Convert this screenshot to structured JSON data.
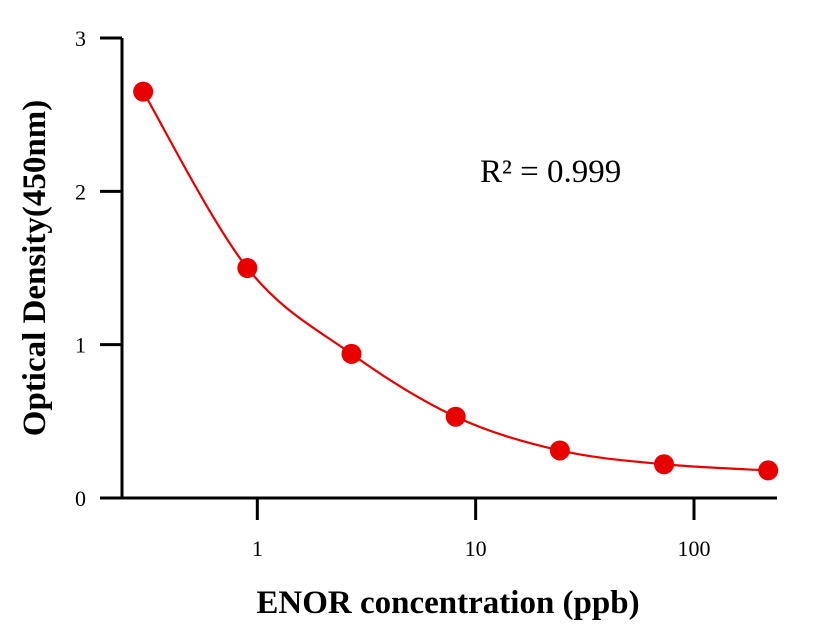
{
  "chart_data": {
    "type": "scatter",
    "xlabel": "ENOR concentration (ppb)",
    "ylabel": "Optical Density(450nm)",
    "xscale": "log",
    "xlim": [
      0.24,
      240
    ],
    "ylim": [
      0,
      3
    ],
    "x_ticks": [
      1,
      10,
      100
    ],
    "x_tick_labels": [
      "1",
      "10",
      "100"
    ],
    "y_ticks": [
      0,
      1,
      2,
      3
    ],
    "y_tick_labels": [
      "0",
      "1",
      "2",
      "3"
    ],
    "grid": false,
    "annotation": "R² = 0.999",
    "series": [
      {
        "color": "#e80000",
        "x": [
          0.3,
          0.9,
          2.7,
          8.1,
          24.3,
          72.9,
          218.7
        ],
        "y": [
          2.65,
          1.5,
          0.94,
          0.53,
          0.31,
          0.22,
          0.18
        ],
        "fit_curve": true
      }
    ]
  }
}
